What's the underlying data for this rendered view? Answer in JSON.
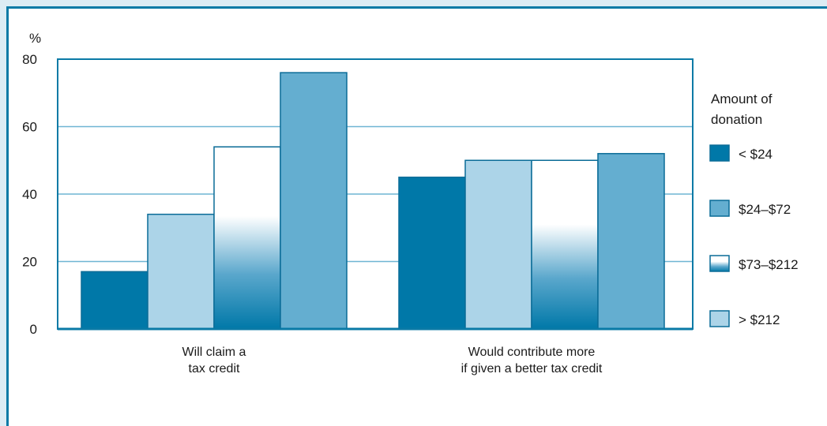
{
  "chart_data": {
    "type": "bar",
    "title": "",
    "xlabel": "",
    "ylabel": "%",
    "ylim": [
      0,
      80
    ],
    "yticks": [
      0,
      20,
      40,
      60,
      80
    ],
    "grid": true,
    "legend_position": "right",
    "legend_title": [
      "Amount of",
      "donation"
    ],
    "categories": [
      [
        "Will claim a",
        "tax credit"
      ],
      [
        "Would contribute more",
        "if given a better tax credit"
      ]
    ],
    "series": [
      {
        "name": "< $24",
        "values": [
          17,
          45
        ],
        "fill": "solid-dark"
      },
      {
        "name": "> $212",
        "values": [
          34,
          50
        ],
        "fill": "solid-light"
      },
      {
        "name": "$73–$212",
        "values": [
          54,
          50
        ],
        "fill": "gradient"
      },
      {
        "name": "$24–$72",
        "values": [
          76,
          52
        ],
        "fill": "solid-mid"
      }
    ],
    "legend_order": [
      "< $24",
      "$24–$72",
      "$73–$212",
      "> $212"
    ]
  },
  "colors": {
    "dark": "#0078a8",
    "mid": "#64aed0",
    "light": "#acd4e8",
    "axis": "#0a7aa6",
    "grid": "#6fb5d3",
    "bar_stroke": "#0a6c97"
  }
}
